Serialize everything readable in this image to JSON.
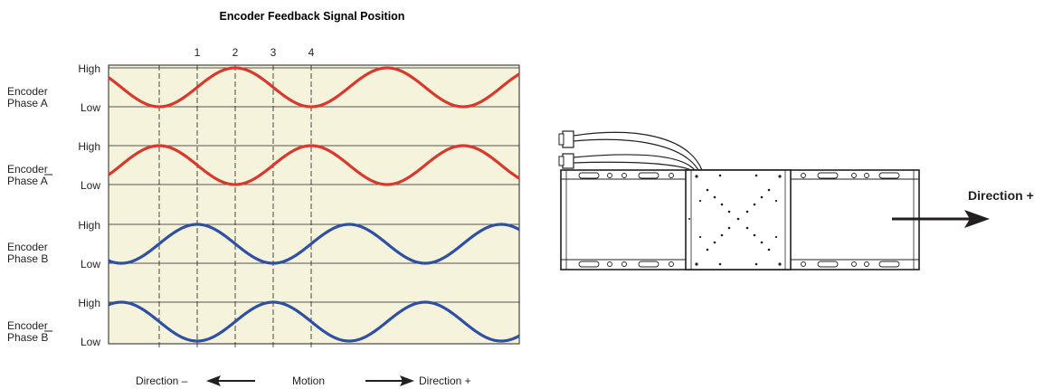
{
  "title": "Encoder Feedback Signal Position",
  "position_marks": [
    "1",
    "2",
    "3",
    "4"
  ],
  "levels": {
    "high": "High",
    "low": "Low"
  },
  "signals": [
    {
      "label_line1": "Encoder",
      "label_line2": "Phase A",
      "overbar": false,
      "color": "#d9392c"
    },
    {
      "label_line1": "Encoder",
      "label_line2": "Phase A",
      "overbar": true,
      "color": "#d9392c"
    },
    {
      "label_line1": "Encoder",
      "label_line2": "Phase B",
      "overbar": false,
      "color": "#2e4fa3"
    },
    {
      "label_line1": "Encoder",
      "label_line2": "Phase B",
      "overbar": true,
      "color": "#2e4fa3"
    }
  ],
  "motion": {
    "left": "Direction –",
    "center": "Motion",
    "right": "Direction +"
  },
  "stage": {
    "direction_label": "Direction +"
  },
  "colors": {
    "plot_background": "#f5f3dc",
    "grid": "#231f20"
  }
}
